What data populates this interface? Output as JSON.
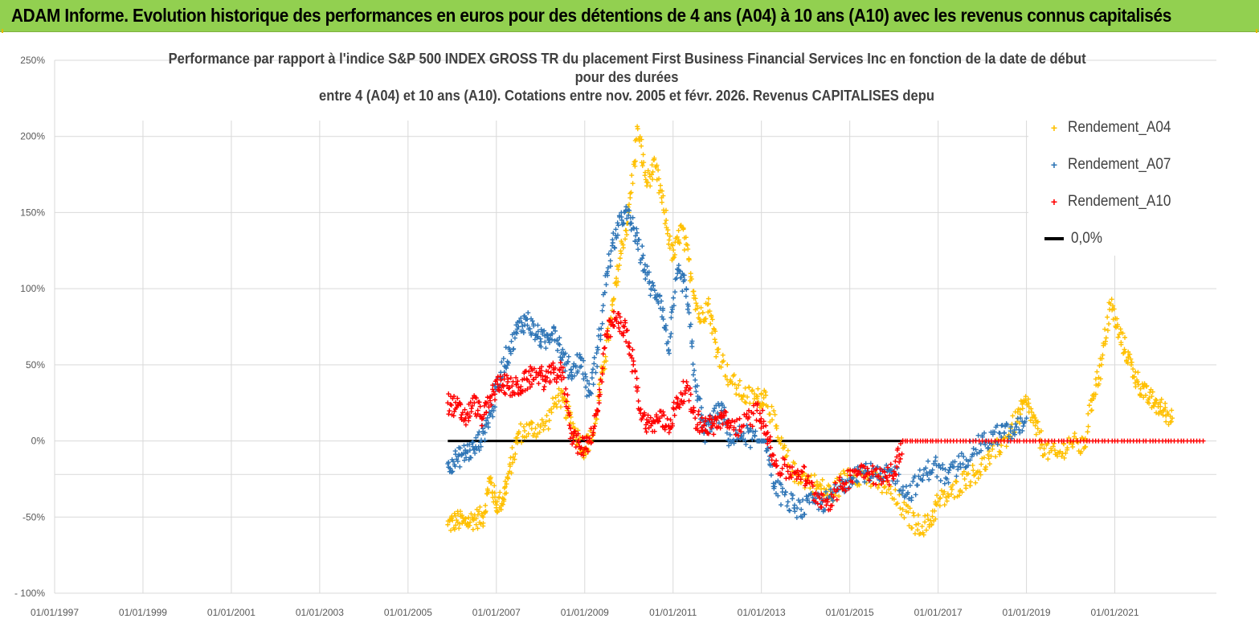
{
  "header": {
    "title": "ADAM Informe. Evolution historique des performances en euros pour des détentions de 4 ans (A04) à 10 ans (A10) avec les revenus connus capitalisés"
  },
  "chart_data": {
    "type": "scatter",
    "title_lines": [
      "Performance par rapport à l'indice S&P 500 INDEX GROSS TR  du placement First Business Financial Services Inc en fonction de la date de début",
      "pour des durées",
      "entre 4 (A04) et 10 ans (A10). Cotations entre nov. 2005 et févr. 2026. Revenus CAPITALISES depu"
    ],
    "xlabel": "",
    "ylabel": "",
    "xlim": [
      1997.0,
      2023.3
    ],
    "ylim": [
      -100,
      250
    ],
    "y_ticks": [
      "250%",
      "200%",
      "150%",
      "100%",
      "50%",
      "0%",
      "-50%",
      "- 100%"
    ],
    "y_tick_values": [
      250,
      200,
      150,
      100,
      50,
      0,
      -50,
      -100
    ],
    "x_ticks": [
      "01/01/1997",
      "01/01/1999",
      "01/01/2001",
      "01/01/2003",
      "01/01/2005",
      "01/01/2007",
      "01/01/2009",
      "01/01/2011",
      "01/01/2013",
      "01/01/2015",
      "01/01/2017",
      "01/01/2019",
      "01/01/2021"
    ],
    "x_tick_values": [
      1997,
      1999,
      2001,
      2003,
      2005,
      2007,
      2009,
      2011,
      2013,
      2015,
      2017,
      2019,
      2021
    ],
    "legend_position": "top-right",
    "series": [
      {
        "name": "Rendement_A04",
        "color": "#ffc000",
        "marker": "+",
        "points": [
          [
            2005.9,
            -55
          ],
          [
            2006.1,
            -52
          ],
          [
            2006.3,
            -54
          ],
          [
            2006.5,
            -51
          ],
          [
            2006.7,
            -50
          ],
          [
            2006.85,
            -25
          ],
          [
            2007.0,
            -42
          ],
          [
            2007.15,
            -38
          ],
          [
            2007.3,
            -20
          ],
          [
            2007.5,
            5
          ],
          [
            2007.8,
            8
          ],
          [
            2008.1,
            10
          ],
          [
            2008.4,
            30
          ],
          [
            2008.6,
            20
          ],
          [
            2008.8,
            5
          ],
          [
            2009.0,
            -5
          ],
          [
            2009.2,
            5
          ],
          [
            2009.4,
            45
          ],
          [
            2009.6,
            80
          ],
          [
            2009.8,
            120
          ],
          [
            2010.0,
            150
          ],
          [
            2010.2,
            205
          ],
          [
            2010.4,
            170
          ],
          [
            2010.6,
            180
          ],
          [
            2010.8,
            150
          ],
          [
            2011.0,
            120
          ],
          [
            2011.2,
            140
          ],
          [
            2011.4,
            110
          ],
          [
            2011.6,
            80
          ],
          [
            2011.8,
            90
          ],
          [
            2012.0,
            60
          ],
          [
            2012.3,
            40
          ],
          [
            2012.6,
            30
          ],
          [
            2012.9,
            28
          ],
          [
            2013.1,
            30
          ],
          [
            2013.4,
            0
          ],
          [
            2013.7,
            -20
          ],
          [
            2014.0,
            -25
          ],
          [
            2014.3,
            -30
          ],
          [
            2014.6,
            -35
          ],
          [
            2015.0,
            -20
          ],
          [
            2015.4,
            -25
          ],
          [
            2015.8,
            -30
          ],
          [
            2016.2,
            -45
          ],
          [
            2016.5,
            -55
          ],
          [
            2016.8,
            -55
          ],
          [
            2017.0,
            -40
          ],
          [
            2017.3,
            -35
          ],
          [
            2017.6,
            -25
          ],
          [
            2017.9,
            -20
          ],
          [
            2018.2,
            -10
          ],
          [
            2018.5,
            0
          ],
          [
            2018.8,
            15
          ],
          [
            2019.0,
            25
          ],
          [
            2019.2,
            10
          ],
          [
            2019.4,
            -5
          ],
          [
            2019.7,
            -10
          ],
          [
            2020.0,
            0
          ],
          [
            2020.3,
            -5
          ],
          [
            2020.5,
            30
          ],
          [
            2020.7,
            50
          ],
          [
            2020.9,
            90
          ],
          [
            2021.1,
            70
          ],
          [
            2021.3,
            55
          ],
          [
            2021.5,
            40
          ],
          [
            2021.7,
            30
          ],
          [
            2021.9,
            25
          ],
          [
            2022.1,
            20
          ],
          [
            2022.3,
            15
          ]
        ]
      },
      {
        "name": "Rendement_A07",
        "color": "#2e75b6",
        "marker": "+",
        "points": [
          [
            2005.9,
            -15
          ],
          [
            2006.1,
            -12
          ],
          [
            2006.3,
            -8
          ],
          [
            2006.5,
            -5
          ],
          [
            2006.7,
            5
          ],
          [
            2006.9,
            20
          ],
          [
            2007.1,
            45
          ],
          [
            2007.3,
            60
          ],
          [
            2007.5,
            75
          ],
          [
            2007.7,
            80
          ],
          [
            2007.9,
            70
          ],
          [
            2008.1,
            65
          ],
          [
            2008.3,
            75
          ],
          [
            2008.5,
            55
          ],
          [
            2008.7,
            45
          ],
          [
            2008.9,
            55
          ],
          [
            2009.1,
            30
          ],
          [
            2009.3,
            60
          ],
          [
            2009.5,
            110
          ],
          [
            2009.7,
            135
          ],
          [
            2009.9,
            150
          ],
          [
            2010.1,
            140
          ],
          [
            2010.3,
            120
          ],
          [
            2010.5,
            100
          ],
          [
            2010.7,
            95
          ],
          [
            2010.9,
            60
          ],
          [
            2011.1,
            110
          ],
          [
            2011.3,
            100
          ],
          [
            2011.5,
            40
          ],
          [
            2011.7,
            5
          ],
          [
            2011.9,
            15
          ],
          [
            2012.1,
            20
          ],
          [
            2012.3,
            0
          ],
          [
            2012.6,
            5
          ],
          [
            2012.9,
            0
          ],
          [
            2013.1,
            0
          ],
          [
            2013.3,
            -30
          ],
          [
            2013.6,
            -40
          ],
          [
            2013.9,
            -45
          ],
          [
            2014.2,
            -40
          ],
          [
            2014.5,
            -40
          ],
          [
            2014.8,
            -30
          ],
          [
            2015.1,
            -20
          ],
          [
            2015.4,
            -20
          ],
          [
            2015.7,
            -25
          ],
          [
            2016.0,
            -20
          ],
          [
            2016.3,
            -35
          ],
          [
            2016.6,
            -25
          ],
          [
            2016.9,
            -15
          ],
          [
            2017.2,
            -25
          ],
          [
            2017.5,
            -15
          ],
          [
            2017.8,
            -5
          ],
          [
            2018.1,
            0
          ],
          [
            2018.4,
            5
          ],
          [
            2018.7,
            5
          ],
          [
            2019.0,
            15
          ]
        ]
      },
      {
        "name": "Rendement_A10",
        "color": "#ff0000",
        "marker": "+",
        "points": [
          [
            2005.9,
            25
          ],
          [
            2006.1,
            22
          ],
          [
            2006.3,
            15
          ],
          [
            2006.5,
            25
          ],
          [
            2006.7,
            15
          ],
          [
            2006.9,
            30
          ],
          [
            2007.1,
            40
          ],
          [
            2007.3,
            35
          ],
          [
            2007.5,
            35
          ],
          [
            2007.7,
            40
          ],
          [
            2007.9,
            45
          ],
          [
            2008.1,
            40
          ],
          [
            2008.3,
            45
          ],
          [
            2008.5,
            45
          ],
          [
            2008.7,
            5
          ],
          [
            2008.9,
            -5
          ],
          [
            2009.1,
            0
          ],
          [
            2009.3,
            20
          ],
          [
            2009.5,
            70
          ],
          [
            2009.7,
            80
          ],
          [
            2009.9,
            75
          ],
          [
            2010.1,
            50
          ],
          [
            2010.3,
            15
          ],
          [
            2010.5,
            10
          ],
          [
            2010.7,
            15
          ],
          [
            2010.9,
            10
          ],
          [
            2011.1,
            25
          ],
          [
            2011.3,
            35
          ],
          [
            2011.5,
            15
          ],
          [
            2011.7,
            10
          ],
          [
            2011.9,
            10
          ],
          [
            2012.1,
            15
          ],
          [
            2012.3,
            10
          ],
          [
            2012.6,
            10
          ],
          [
            2012.9,
            20
          ],
          [
            2013.1,
            10
          ],
          [
            2013.3,
            -15
          ],
          [
            2013.6,
            -20
          ],
          [
            2013.9,
            -20
          ],
          [
            2014.2,
            -35
          ],
          [
            2014.5,
            -40
          ],
          [
            2014.8,
            -30
          ],
          [
            2015.1,
            -20
          ],
          [
            2015.4,
            -18
          ],
          [
            2015.7,
            -25
          ],
          [
            2016.0,
            -20
          ],
          [
            2016.2,
            0
          ],
          [
            2017.0,
            0
          ],
          [
            2018.0,
            0
          ],
          [
            2019.0,
            0
          ],
          [
            2020.0,
            0
          ],
          [
            2021.0,
            0
          ],
          [
            2022.0,
            0
          ],
          [
            2023.0,
            0
          ]
        ]
      },
      {
        "name": "0,0%",
        "color": "#000000",
        "marker": "line",
        "points": [
          [
            2005.9,
            0
          ],
          [
            2016.2,
            0
          ]
        ]
      }
    ]
  }
}
